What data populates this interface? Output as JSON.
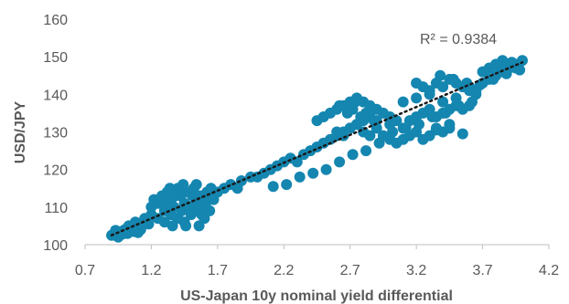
{
  "chart_data": {
    "type": "scatter",
    "xlabel": "US-Japan 10y nominal yield differential",
    "ylabel": "USD/JPY",
    "xlim": [
      0.7,
      4.2
    ],
    "ylim": [
      100,
      160
    ],
    "x_ticks": [
      "0.7",
      "1.2",
      "1.7",
      "2.2",
      "2.7",
      "3.2",
      "3.7",
      "4.2"
    ],
    "y_ticks": [
      "100",
      "110",
      "120",
      "130",
      "140",
      "150",
      "160"
    ],
    "grid": false,
    "legend": "none",
    "annotation": "R² = 0.9384",
    "trendline": {
      "type": "linear",
      "x": [
        0.9,
        4.0
      ],
      "y": [
        102.5,
        148.5
      ],
      "style": "dotted",
      "color": "#1a1a1a"
    },
    "marker_color": "#1486B0",
    "series": [
      {
        "x": [
          0.9,
          0.92,
          0.95,
          0.97,
          1.0,
          1.02,
          1.03,
          1.05,
          1.07,
          1.08,
          1.1,
          1.12,
          1.15,
          1.17,
          1.2,
          0.93,
          0.98,
          1.04,
          1.1,
          1.18,
          1.2,
          1.22,
          1.25,
          1.28,
          1.3,
          1.32,
          1.35,
          1.37,
          1.4,
          1.42,
          1.45,
          1.47,
          1.5,
          1.52,
          1.55,
          1.57,
          1.6,
          1.62,
          1.65,
          1.67,
          1.25,
          1.3,
          1.35,
          1.4,
          1.45,
          1.5,
          1.55,
          1.6,
          1.3,
          1.38,
          1.43,
          1.48,
          1.53,
          1.58,
          1.63,
          1.34,
          1.44,
          1.54,
          1.64,
          1.36,
          1.46,
          1.56,
          1.41,
          1.51,
          1.61,
          1.7,
          1.75,
          1.8,
          1.85,
          1.88,
          1.95,
          2.0,
          2.05,
          2.1,
          2.15,
          2.2,
          2.25,
          2.3,
          2.35,
          2.4,
          2.45,
          2.5,
          2.55,
          2.6,
          2.65,
          2.7,
          2.75,
          2.8,
          2.85,
          2.9,
          2.95,
          3.0,
          2.45,
          2.5,
          2.55,
          2.6,
          2.65,
          2.7,
          2.75,
          2.8,
          2.85,
          2.9,
          2.6,
          2.65,
          2.7,
          2.75,
          2.8,
          2.85,
          2.9,
          2.68,
          2.72,
          2.78,
          2.82,
          2.88,
          2.62,
          2.74,
          2.86,
          2.95,
          3.0,
          3.05,
          3.1,
          3.15,
          3.2,
          3.25,
          3.3,
          3.35,
          3.4,
          3.45,
          3.0,
          3.05,
          3.1,
          3.15,
          3.2,
          3.25,
          3.3,
          3.35,
          3.4,
          3.45,
          3.5,
          3.55,
          3.2,
          3.25,
          3.3,
          3.35,
          3.4,
          3.45,
          3.5,
          3.55,
          3.6,
          3.65,
          3.1,
          3.2,
          3.3,
          3.4,
          3.5,
          3.6,
          3.35,
          3.45,
          3.55,
          3.38,
          3.48,
          3.58,
          3.6,
          3.65,
          3.7,
          3.75,
          3.8,
          3.85,
          3.9,
          3.95,
          3.7,
          3.75,
          3.8,
          3.85,
          3.9,
          3.95,
          4.0,
          3.72,
          3.82,
          3.92,
          3.98,
          3.88,
          3.78,
          3.68,
          3.62,
          3.52,
          3.42,
          3.32,
          3.22,
          3.12,
          3.02,
          2.92,
          2.82,
          2.72,
          2.62,
          2.52,
          2.42,
          2.32,
          2.22,
          2.12
        ],
        "y": [
          102.5,
          103.0,
          102.0,
          103.5,
          104.0,
          103.0,
          105.0,
          104.5,
          103.5,
          106.0,
          105.0,
          104.0,
          107.0,
          106.0,
          108.0,
          103.8,
          102.8,
          104.2,
          103.2,
          105.5,
          110.0,
          112.0,
          111.0,
          113.0,
          109.0,
          114.0,
          112.0,
          110.0,
          115.0,
          113.0,
          111.0,
          114.0,
          109.0,
          115.0,
          112.0,
          113.0,
          110.0,
          114.0,
          115.0,
          112.0,
          107.0,
          106.0,
          108.0,
          107.0,
          106.0,
          108.0,
          109.0,
          107.0,
          111.0,
          113.0,
          109.0,
          110.0,
          111.0,
          108.0,
          113.0,
          115.0,
          116.0,
          116.0,
          109.0,
          105.0,
          105.0,
          105.0,
          114.0,
          113.0,
          111.0,
          114.0,
          115.0,
          116.0,
          115.0,
          117.0,
          118.0,
          118.0,
          119.0,
          120.0,
          121.0,
          122.0,
          123.0,
          122.0,
          124.0,
          125.0,
          126.0,
          127.0,
          128.0,
          129.0,
          130.0,
          131.0,
          132.0,
          133.0,
          134.0,
          133.0,
          135.0,
          134.0,
          133.0,
          134.0,
          135.0,
          136.0,
          137.0,
          138.0,
          139.0,
          138.0,
          137.0,
          136.0,
          130.0,
          129.0,
          131.0,
          132.0,
          130.0,
          129.0,
          131.0,
          135.0,
          136.0,
          134.0,
          135.0,
          133.0,
          137.0,
          138.0,
          136.0,
          129.0,
          128.0,
          127.0,
          128.0,
          129.0,
          130.0,
          128.0,
          129.0,
          131.0,
          130.0,
          132.0,
          132.0,
          133.0,
          131.0,
          133.0,
          134.0,
          135.0,
          136.0,
          134.0,
          135.0,
          136.0,
          137.0,
          136.0,
          143.0,
          142.0,
          141.0,
          143.0,
          142.0,
          144.0,
          143.0,
          142.0,
          141.0,
          140.0,
          138.0,
          139.0,
          140.0,
          138.0,
          139.0,
          137.0,
          130.5,
          131.0,
          129.5,
          145.0,
          144.0,
          143.0,
          142.0,
          141.0,
          143.0,
          144.0,
          145.0,
          146.0,
          147.0,
          148.0,
          146.0,
          147.0,
          148.0,
          149.0,
          148.0,
          147.0,
          149.0,
          146.0,
          147.5,
          148.5,
          146.5,
          145.5,
          144.0,
          142.5,
          138.0,
          137.0,
          135.0,
          134.0,
          132.0,
          131.0,
          130.0,
          127.0,
          125.0,
          124.0,
          122.0,
          120.0,
          119.0,
          118.0,
          116.0,
          115.5
        ]
      }
    ]
  }
}
